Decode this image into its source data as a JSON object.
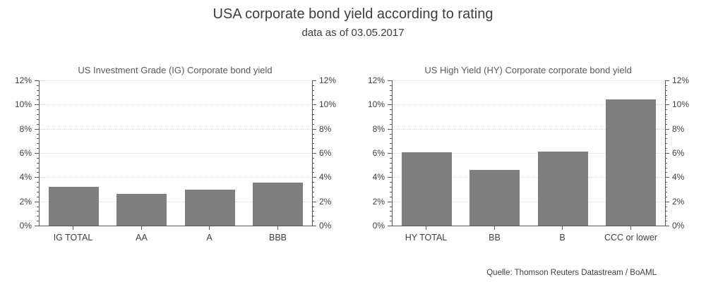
{
  "header": {
    "title": "USA corporate bond yield according to rating",
    "subtitle": "data as of 03.05.2017"
  },
  "source": "Quelle: Thomson Reuters Datastream / BoAML",
  "colors": {
    "bar": "#7f7f7f",
    "axis": "#595959",
    "grid": "#d6d6d6",
    "text": "#404040",
    "title_text": "#3d3d3d",
    "chart_title_text": "#595959"
  },
  "chart_data": [
    {
      "type": "bar",
      "title": "US Investment Grade (IG) Corporate bond yield",
      "categories": [
        "IG TOTAL",
        "AA",
        "A",
        "BBB"
      ],
      "values": [
        3.2,
        2.6,
        2.95,
        3.55
      ],
      "xlabel": "",
      "ylabel": "",
      "ylim": [
        0,
        12
      ],
      "y_major_step": 2,
      "y_minor_step": 0.4,
      "ytick_labels": [
        "0%",
        "2%",
        "4%",
        "6%",
        "8%",
        "10%",
        "12%"
      ],
      "grid": true,
      "gridline_style": "dotted",
      "legend": false,
      "y_axis_sides": [
        "left",
        "right"
      ]
    },
    {
      "type": "bar",
      "title": "US High Yield (HY) Corporate corporate bond yield",
      "categories": [
        "HY TOTAL",
        "BB",
        "B",
        "CCC or lower"
      ],
      "values": [
        6.05,
        4.6,
        6.1,
        10.45
      ],
      "xlabel": "",
      "ylabel": "",
      "ylim": [
        0,
        12
      ],
      "y_major_step": 2,
      "y_minor_step": 0.4,
      "ytick_labels": [
        "0%",
        "2%",
        "4%",
        "6%",
        "8%",
        "10%",
        "12%"
      ],
      "grid": true,
      "gridline_style": "dotted",
      "legend": false,
      "y_axis_sides": [
        "left",
        "right"
      ]
    }
  ]
}
